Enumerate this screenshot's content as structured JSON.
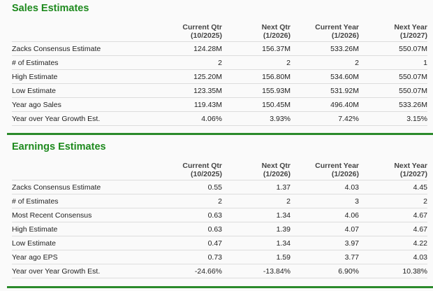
{
  "sales": {
    "title": "Sales Estimates",
    "columns": [
      {
        "name": "Current Qtr",
        "period": "(10/2025)"
      },
      {
        "name": "Next Qtr",
        "period": "(1/2026)"
      },
      {
        "name": "Current Year",
        "period": "(1/2026)"
      },
      {
        "name": "Next Year",
        "period": "(1/2027)"
      }
    ],
    "rows": [
      {
        "label": "Zacks Consensus Estimate",
        "values": [
          "124.28M",
          "156.37M",
          "533.26M",
          "550.07M"
        ]
      },
      {
        "label": "# of Estimates",
        "values": [
          "2",
          "2",
          "2",
          "1"
        ]
      },
      {
        "label": "High Estimate",
        "values": [
          "125.20M",
          "156.80M",
          "534.60M",
          "550.07M"
        ]
      },
      {
        "label": "Low Estimate",
        "values": [
          "123.35M",
          "155.93M",
          "531.92M",
          "550.07M"
        ]
      },
      {
        "label": "Year ago Sales",
        "values": [
          "119.43M",
          "150.45M",
          "496.40M",
          "533.26M"
        ]
      },
      {
        "label": "Year over Year Growth Est.",
        "values": [
          "4.06%",
          "3.93%",
          "7.42%",
          "3.15%"
        ]
      }
    ]
  },
  "earnings": {
    "title": "Earnings Estimates",
    "columns": [
      {
        "name": "Current Qtr",
        "period": "(10/2025)"
      },
      {
        "name": "Next Qtr",
        "period": "(1/2026)"
      },
      {
        "name": "Current Year",
        "period": "(1/2026)"
      },
      {
        "name": "Next Year",
        "period": "(1/2027)"
      }
    ],
    "rows": [
      {
        "label": "Zacks Consensus Estimate",
        "values": [
          "0.55",
          "1.37",
          "4.03",
          "4.45"
        ]
      },
      {
        "label": "# of Estimates",
        "values": [
          "2",
          "2",
          "3",
          "2"
        ]
      },
      {
        "label": "Most Recent Consensus",
        "values": [
          "0.63",
          "1.34",
          "4.06",
          "4.67"
        ]
      },
      {
        "label": "High Estimate",
        "values": [
          "0.63",
          "1.39",
          "4.07",
          "4.67"
        ]
      },
      {
        "label": "Low Estimate",
        "values": [
          "0.47",
          "1.34",
          "3.97",
          "4.22"
        ]
      },
      {
        "label": "Year ago EPS",
        "values": [
          "0.73",
          "1.59",
          "3.77",
          "4.03"
        ]
      },
      {
        "label": "Year over Year Growth Est.",
        "values": [
          "-24.66%",
          "-13.84%",
          "6.90%",
          "10.38%"
        ]
      }
    ]
  },
  "colors": {
    "accent": "#1e8a1e",
    "divider": "#2a8a2a"
  }
}
